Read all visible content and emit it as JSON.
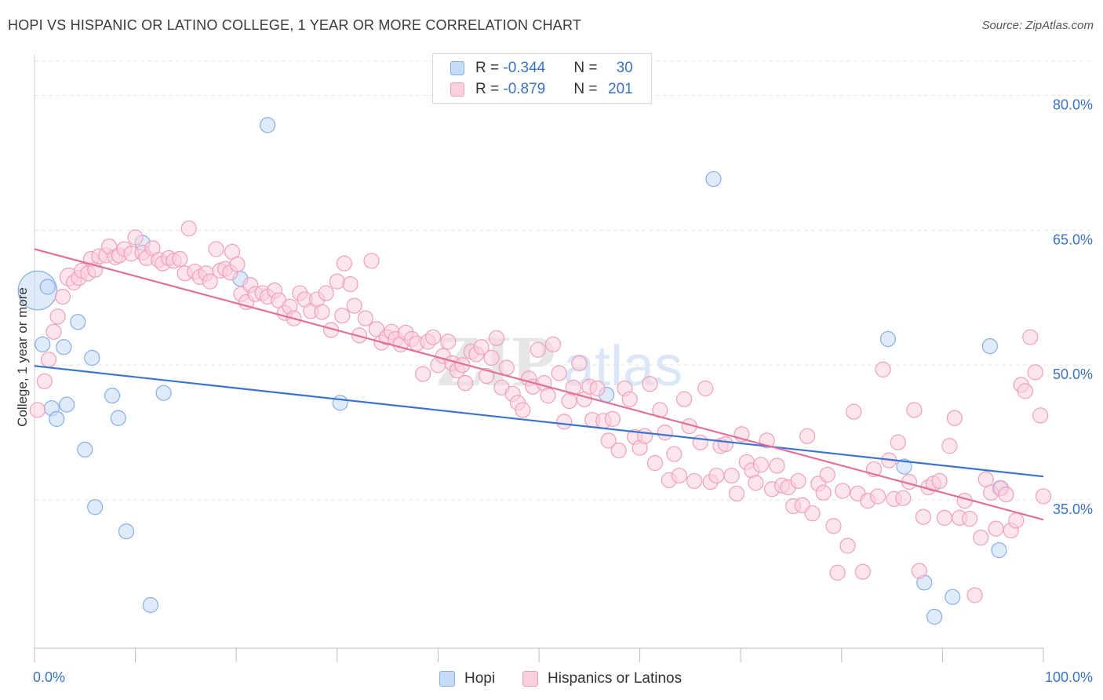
{
  "title": "HOPI VS HISPANIC OR LATINO COLLEGE, 1 YEAR OR MORE CORRELATION CHART",
  "source": "Source: ZipAtlas.com",
  "watermark": {
    "zip": "ZIP",
    "atlas": "atlas"
  },
  "colors": {
    "hopi": "#9ec2ee",
    "hopi_line": "#3b74d0",
    "hispanic": "#f2a8c0",
    "hispanic_line": "#e07098",
    "tick": "#3b73c4",
    "grid": "#e3e3e3"
  },
  "legend": {
    "rows": [
      {
        "r_label": "R = ",
        "r_value": "-0.344",
        "n_label": "N = ",
        "n_value": "30"
      },
      {
        "r_label": "R = ",
        "r_value": "-0.879",
        "n_label": "N = ",
        "n_value": "201"
      }
    ],
    "bottom": [
      {
        "label": "Hopi"
      },
      {
        "label": "Hispanics or Latinos"
      }
    ]
  },
  "chart_data": {
    "type": "scatter",
    "title": "HOPI VS HISPANIC OR LATINO COLLEGE, 1 YEAR OR MORE CORRELATION CHART",
    "xlabel": "",
    "ylabel": "College, 1 year or more",
    "xlim": [
      0,
      100
    ],
    "ylim": [
      18.5,
      84.5
    ],
    "x_tick_labels": [
      "0.0%",
      "100.0%"
    ],
    "y_ticks": [
      35,
      50,
      65,
      80
    ],
    "y_tick_labels": [
      "35.0%",
      "50.0%",
      "65.0%",
      "80.0%"
    ],
    "grid": true,
    "legend_position": "top-center",
    "series": [
      {
        "name": "Hopi",
        "trend": {
          "x": [
            0,
            100
          ],
          "y": [
            49.9,
            37.6
          ]
        },
        "points": [
          [
            0.3,
            58.3,
            2.6
          ],
          [
            1.3,
            58.7,
            1
          ],
          [
            0.8,
            52.3,
            1
          ],
          [
            2.9,
            52.0,
            1
          ],
          [
            4.3,
            54.8,
            1
          ],
          [
            5.7,
            50.8,
            1
          ],
          [
            1.7,
            45.2,
            1
          ],
          [
            2.2,
            44.0,
            1
          ],
          [
            3.2,
            45.6,
            1
          ],
          [
            7.7,
            46.6,
            1
          ],
          [
            8.3,
            44.1,
            1
          ],
          [
            12.8,
            46.9,
            1
          ],
          [
            5.0,
            40.6,
            1
          ],
          [
            6.0,
            34.2,
            1
          ],
          [
            9.1,
            31.5,
            1
          ],
          [
            11.5,
            23.3,
            1
          ],
          [
            10.7,
            63.6,
            1
          ],
          [
            23.1,
            76.7,
            1
          ],
          [
            20.4,
            59.6,
            1
          ],
          [
            30.3,
            45.8,
            1
          ],
          [
            67.3,
            70.7,
            1
          ],
          [
            56.7,
            46.7,
            1
          ],
          [
            84.6,
            52.9,
            1
          ],
          [
            86.2,
            38.7,
            1
          ],
          [
            94.7,
            52.1,
            1
          ],
          [
            95.7,
            36.3,
            1
          ],
          [
            88.2,
            25.8,
            1
          ],
          [
            91.0,
            24.2,
            1
          ],
          [
            95.6,
            29.4,
            1
          ],
          [
            89.2,
            22.0,
            1
          ]
        ]
      },
      {
        "name": "Hispanics or Latinos",
        "trend": {
          "x": [
            0,
            100
          ],
          "y": [
            62.9,
            32.8
          ]
        },
        "points": [
          [
            0.3,
            45.0,
            1
          ],
          [
            1.0,
            48.2,
            1
          ],
          [
            1.4,
            50.6,
            1
          ],
          [
            1.9,
            53.7,
            1
          ],
          [
            2.3,
            55.4,
            1
          ],
          [
            2.8,
            57.6,
            1
          ],
          [
            3.4,
            59.8,
            1.2
          ],
          [
            3.9,
            59.2,
            1
          ],
          [
            4.4,
            59.7,
            1
          ],
          [
            4.7,
            60.5,
            1
          ],
          [
            5.3,
            60.2,
            1
          ],
          [
            5.6,
            61.8,
            1
          ],
          [
            6.0,
            60.6,
            1
          ],
          [
            6.4,
            62.1,
            1
          ],
          [
            7.1,
            62.2,
            1
          ],
          [
            7.4,
            63.2,
            1
          ],
          [
            8.0,
            62.0,
            1
          ],
          [
            8.4,
            62.2,
            1
          ],
          [
            8.9,
            62.9,
            1
          ],
          [
            9.6,
            62.4,
            1
          ],
          [
            10.0,
            64.2,
            1
          ],
          [
            10.7,
            62.5,
            1
          ],
          [
            11.1,
            61.9,
            1
          ],
          [
            11.7,
            63.0,
            1
          ],
          [
            12.3,
            61.7,
            1
          ],
          [
            12.7,
            61.3,
            1
          ],
          [
            13.3,
            61.9,
            1
          ],
          [
            13.8,
            61.6,
            1
          ],
          [
            14.4,
            61.8,
            1
          ],
          [
            14.9,
            60.2,
            1
          ],
          [
            15.3,
            65.2,
            1
          ],
          [
            15.9,
            60.4,
            1
          ],
          [
            16.4,
            59.8,
            1
          ],
          [
            17.0,
            60.2,
            1
          ],
          [
            17.4,
            59.3,
            1
          ],
          [
            18.0,
            62.9,
            1
          ],
          [
            18.4,
            60.5,
            1
          ],
          [
            18.9,
            60.7,
            1
          ],
          [
            19.4,
            60.3,
            1
          ],
          [
            19.6,
            62.6,
            1
          ],
          [
            20.1,
            61.2,
            1
          ],
          [
            20.5,
            57.9,
            1
          ],
          [
            21.0,
            57.0,
            1
          ],
          [
            21.4,
            58.9,
            1
          ],
          [
            21.9,
            57.9,
            1
          ],
          [
            22.6,
            58.0,
            1
          ],
          [
            23.1,
            57.6,
            1
          ],
          [
            23.8,
            58.3,
            1
          ],
          [
            24.2,
            57.2,
            1
          ],
          [
            24.8,
            55.8,
            1
          ],
          [
            25.3,
            56.5,
            1
          ],
          [
            25.7,
            55.2,
            1
          ],
          [
            26.3,
            58.0,
            1
          ],
          [
            26.8,
            57.3,
            1
          ],
          [
            27.4,
            56.0,
            1
          ],
          [
            28.0,
            57.3,
            1
          ],
          [
            28.5,
            55.9,
            1
          ],
          [
            28.9,
            58.0,
            1
          ],
          [
            29.4,
            53.9,
            1
          ],
          [
            30.0,
            59.3,
            1
          ],
          [
            30.5,
            55.5,
            1
          ],
          [
            30.7,
            61.3,
            1
          ],
          [
            31.3,
            59.0,
            1
          ],
          [
            31.7,
            56.6,
            1
          ],
          [
            32.2,
            53.3,
            1
          ],
          [
            32.8,
            55.2,
            1
          ],
          [
            33.4,
            61.6,
            1
          ],
          [
            33.9,
            54.0,
            1
          ],
          [
            34.4,
            52.5,
            1
          ],
          [
            34.9,
            53.1,
            1
          ],
          [
            35.4,
            53.7,
            1
          ],
          [
            35.8,
            52.9,
            1
          ],
          [
            36.3,
            52.3,
            1
          ],
          [
            36.8,
            53.6,
            1
          ],
          [
            37.4,
            52.9,
            1
          ],
          [
            37.9,
            52.4,
            1
          ],
          [
            38.5,
            49.0,
            1
          ],
          [
            39.0,
            52.6,
            1
          ],
          [
            39.5,
            53.1,
            1
          ],
          [
            40.0,
            50.0,
            1
          ],
          [
            40.5,
            51.0,
            1
          ],
          [
            41.0,
            52.6,
            1
          ],
          [
            41.4,
            50.2,
            1
          ],
          [
            41.9,
            49.4,
            1
          ],
          [
            42.4,
            50.0,
            1
          ],
          [
            42.7,
            48.0,
            1
          ],
          [
            43.3,
            51.5,
            1
          ],
          [
            43.8,
            51.2,
            1
          ],
          [
            44.3,
            52.0,
            1
          ],
          [
            44.8,
            48.8,
            1
          ],
          [
            45.3,
            50.8,
            1
          ],
          [
            45.8,
            53.0,
            1
          ],
          [
            46.3,
            47.5,
            1
          ],
          [
            46.8,
            49.7,
            1
          ],
          [
            47.4,
            46.8,
            1
          ],
          [
            47.9,
            45.8,
            1
          ],
          [
            48.4,
            45.0,
            1
          ],
          [
            49.0,
            48.5,
            1
          ],
          [
            49.4,
            47.6,
            1
          ],
          [
            49.9,
            51.7,
            1
          ],
          [
            50.5,
            48.0,
            1
          ],
          [
            50.9,
            46.6,
            1
          ],
          [
            51.4,
            52.3,
            1
          ],
          [
            52.0,
            49.1,
            1
          ],
          [
            52.5,
            43.7,
            1
          ],
          [
            53.0,
            46.0,
            1
          ],
          [
            53.4,
            47.5,
            1
          ],
          [
            54.0,
            50.2,
            1
          ],
          [
            54.5,
            46.2,
            1
          ],
          [
            55.0,
            47.6,
            1
          ],
          [
            55.3,
            43.9,
            1
          ],
          [
            55.8,
            47.4,
            1
          ],
          [
            56.4,
            43.8,
            1
          ],
          [
            56.9,
            41.6,
            1
          ],
          [
            57.3,
            44.0,
            1
          ],
          [
            57.9,
            40.5,
            1
          ],
          [
            58.5,
            47.4,
            1
          ],
          [
            59.0,
            46.2,
            1
          ],
          [
            59.5,
            42.0,
            1
          ],
          [
            60.0,
            40.8,
            1
          ],
          [
            60.5,
            42.1,
            1
          ],
          [
            61.0,
            47.9,
            1
          ],
          [
            61.5,
            39.1,
            1
          ],
          [
            62.0,
            45.0,
            1
          ],
          [
            62.5,
            42.5,
            1
          ],
          [
            62.9,
            37.2,
            1
          ],
          [
            63.4,
            40.1,
            1
          ],
          [
            63.9,
            37.7,
            1
          ],
          [
            64.4,
            46.2,
            1
          ],
          [
            64.9,
            43.2,
            1
          ],
          [
            65.4,
            37.1,
            1
          ],
          [
            66.0,
            41.4,
            1
          ],
          [
            66.5,
            47.4,
            1
          ],
          [
            67.0,
            37.0,
            1
          ],
          [
            67.6,
            37.7,
            1
          ],
          [
            68.0,
            41.0,
            1
          ],
          [
            68.5,
            41.2,
            1
          ],
          [
            69.1,
            37.7,
            1
          ],
          [
            69.6,
            35.7,
            1
          ],
          [
            70.1,
            42.3,
            1
          ],
          [
            70.6,
            39.2,
            1
          ],
          [
            71.1,
            38.3,
            1
          ],
          [
            71.5,
            36.9,
            1
          ],
          [
            72.0,
            38.9,
            1
          ],
          [
            72.6,
            41.6,
            1
          ],
          [
            73.1,
            36.2,
            1
          ],
          [
            73.6,
            38.8,
            1
          ],
          [
            74.1,
            36.6,
            1
          ],
          [
            74.7,
            36.4,
            1
          ],
          [
            75.2,
            34.3,
            1
          ],
          [
            75.7,
            37.1,
            1
          ],
          [
            76.1,
            34.4,
            1
          ],
          [
            76.6,
            42.1,
            1
          ],
          [
            77.1,
            33.5,
            1
          ],
          [
            77.7,
            36.8,
            1
          ],
          [
            78.2,
            35.8,
            1
          ],
          [
            78.6,
            37.8,
            1
          ],
          [
            79.2,
            32.1,
            1
          ],
          [
            79.6,
            26.9,
            1
          ],
          [
            80.1,
            36.0,
            1
          ],
          [
            80.6,
            29.9,
            1
          ],
          [
            81.2,
            44.8,
            1
          ],
          [
            81.6,
            35.7,
            1
          ],
          [
            82.1,
            27.0,
            1
          ],
          [
            82.6,
            34.9,
            1
          ],
          [
            83.2,
            38.4,
            1
          ],
          [
            83.6,
            35.4,
            1
          ],
          [
            84.1,
            49.5,
            1
          ],
          [
            84.7,
            39.4,
            1
          ],
          [
            85.2,
            35.1,
            1
          ],
          [
            85.6,
            41.4,
            1
          ],
          [
            86.1,
            35.2,
            1
          ],
          [
            86.7,
            37.0,
            1
          ],
          [
            87.2,
            45.0,
            1
          ],
          [
            87.7,
            27.1,
            1
          ],
          [
            88.1,
            33.1,
            1
          ],
          [
            88.6,
            36.4,
            1
          ],
          [
            89.1,
            36.8,
            1
          ],
          [
            89.7,
            37.1,
            1
          ],
          [
            90.2,
            33.0,
            1
          ],
          [
            90.7,
            41.0,
            1
          ],
          [
            91.2,
            44.1,
            1
          ],
          [
            91.7,
            33.0,
            1
          ],
          [
            92.2,
            34.9,
            1
          ],
          [
            92.7,
            32.9,
            1
          ],
          [
            93.2,
            24.4,
            1
          ],
          [
            93.8,
            30.8,
            1
          ],
          [
            94.3,
            37.3,
            1
          ],
          [
            94.8,
            35.8,
            1
          ],
          [
            95.3,
            31.8,
            1
          ],
          [
            95.8,
            36.3,
            1
          ],
          [
            96.3,
            35.6,
            1
          ],
          [
            96.8,
            31.6,
            1
          ],
          [
            97.3,
            32.7,
            1
          ],
          [
            97.8,
            47.8,
            1
          ],
          [
            98.2,
            47.1,
            1
          ],
          [
            98.7,
            53.1,
            1
          ],
          [
            99.2,
            49.2,
            1
          ],
          [
            99.7,
            44.4,
            1
          ],
          [
            100.0,
            35.4,
            1
          ]
        ]
      }
    ]
  }
}
